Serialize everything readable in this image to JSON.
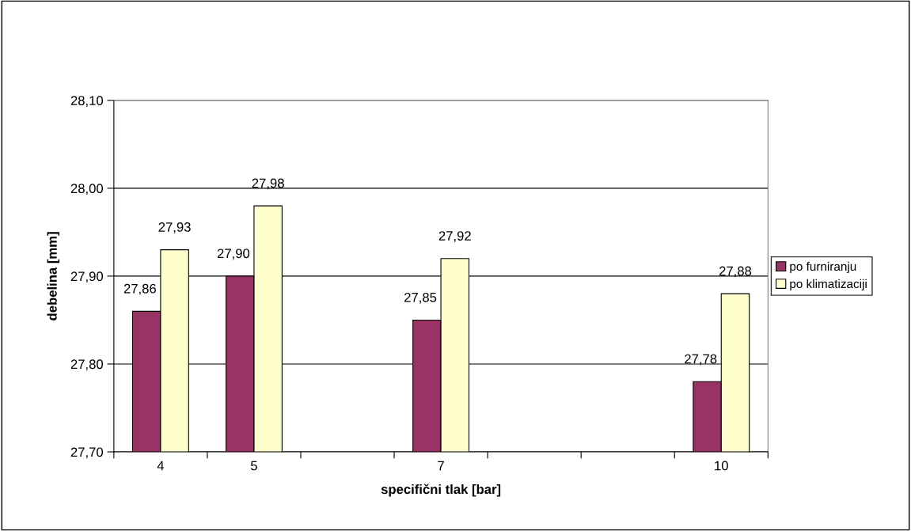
{
  "chart_data": {
    "type": "bar",
    "xlabel": "specifični tlak [bar]",
    "ylabel": "debelina [mm]",
    "x": [
      4,
      5,
      7,
      10
    ],
    "series": [
      {
        "name": "po furniranju",
        "color": "#993366",
        "values": [
          27.86,
          27.9,
          27.85,
          27.78
        ],
        "value_labels": [
          "27,86",
          "27,90",
          "27,85",
          "27,78"
        ]
      },
      {
        "name": "po klimatizaciji",
        "color": "#ffffcc",
        "values": [
          27.93,
          27.98,
          27.92,
          27.88
        ],
        "value_labels": [
          "27,93",
          "27,98",
          "27,92",
          "27,88"
        ]
      }
    ],
    "xlim": [
      3.5,
      10.5
    ],
    "xticks": [
      {
        "value": 3.5,
        "label": null
      },
      {
        "value": 4,
        "label": "4"
      },
      {
        "value": 4.5,
        "label": null
      },
      {
        "value": 5,
        "label": "5"
      },
      {
        "value": 5.5,
        "label": null
      },
      {
        "value": 6.5,
        "label": null
      },
      {
        "value": 7,
        "label": "7"
      },
      {
        "value": 7.5,
        "label": null
      },
      {
        "value": 8.5,
        "label": null
      },
      {
        "value": 9.5,
        "label": null
      },
      {
        "value": 10,
        "label": "10"
      },
      {
        "value": 10.5,
        "label": null
      }
    ],
    "ylim": [
      27.7,
      28.1
    ],
    "yticks": [
      {
        "value": 27.7,
        "label": "27,70"
      },
      {
        "value": 27.8,
        "label": "27,80"
      },
      {
        "value": 27.9,
        "label": "27,90"
      },
      {
        "value": 28.0,
        "label": "28,00"
      },
      {
        "value": 28.1,
        "label": "28,10"
      }
    ],
    "grid": "y",
    "legend": "right"
  }
}
